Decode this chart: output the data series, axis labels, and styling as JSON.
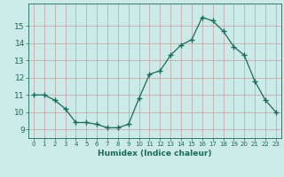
{
  "x": [
    0,
    1,
    2,
    3,
    4,
    5,
    6,
    7,
    8,
    9,
    10,
    11,
    12,
    13,
    14,
    15,
    16,
    17,
    18,
    19,
    20,
    21,
    22,
    23
  ],
  "y": [
    11.0,
    11.0,
    10.7,
    10.2,
    9.4,
    9.4,
    9.3,
    9.1,
    9.1,
    9.3,
    10.8,
    12.2,
    12.4,
    13.3,
    13.9,
    14.2,
    15.5,
    15.3,
    14.7,
    13.8,
    13.3,
    11.8,
    10.7,
    10.0
  ],
  "xlabel": "Humidex (Indice chaleur)",
  "ylim": [
    8.5,
    16.3
  ],
  "xlim": [
    -0.5,
    23.5
  ],
  "yticks": [
    9,
    10,
    11,
    12,
    13,
    14,
    15
  ],
  "xticks": [
    0,
    1,
    2,
    3,
    4,
    5,
    6,
    7,
    8,
    9,
    10,
    11,
    12,
    13,
    14,
    15,
    16,
    17,
    18,
    19,
    20,
    21,
    22,
    23
  ],
  "xtick_labels": [
    "0",
    "1",
    "2",
    "3",
    "4",
    "5",
    "6",
    "7",
    "8",
    "9",
    "10",
    "11",
    "12",
    "13",
    "14",
    "15",
    "16",
    "17",
    "18",
    "19",
    "20",
    "21",
    "22",
    "23"
  ],
  "line_color": "#1a6b5a",
  "marker": "+",
  "marker_size": 4,
  "marker_lw": 1.0,
  "line_width": 0.9,
  "bg_color": "#cceae7",
  "grid_color": "#c4a0a0",
  "xlabel_fontsize": 6.5,
  "ytick_fontsize": 6.5,
  "xtick_fontsize": 5.0,
  "spine_color": "#1a6b5a"
}
